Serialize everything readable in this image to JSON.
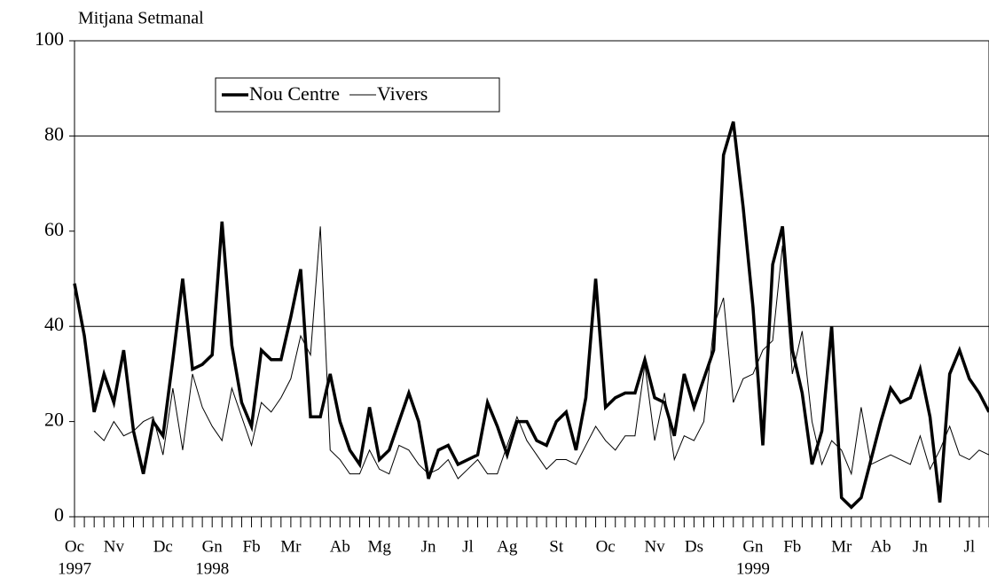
{
  "chart_data": {
    "type": "line",
    "y_label": "Mitjana Setmanal",
    "categories": [
      "Oc",
      null,
      null,
      null,
      "Nv",
      null,
      null,
      null,
      null,
      "Dc",
      null,
      null,
      null,
      null,
      "Gn",
      null,
      null,
      null,
      "Fb",
      null,
      null,
      null,
      "Mr",
      null,
      null,
      null,
      null,
      "Ab",
      null,
      null,
      null,
      "Mg",
      null,
      null,
      null,
      null,
      "Jn",
      null,
      null,
      null,
      "Jl",
      null,
      null,
      null,
      "Ag",
      null,
      null,
      null,
      null,
      "St",
      null,
      null,
      null,
      null,
      "Oc",
      null,
      null,
      null,
      null,
      "Nv",
      null,
      null,
      null,
      "Ds",
      null,
      null,
      null,
      null,
      null,
      "Gn",
      null,
      null,
      null,
      "Fb",
      null,
      null,
      null,
      null,
      "Mr",
      null,
      null,
      null,
      "Ab",
      null,
      null,
      null,
      "Jn",
      null,
      null,
      null,
      null,
      "Jl",
      null,
      null
    ],
    "years": [
      "1997",
      null,
      null,
      null,
      null,
      null,
      null,
      null,
      null,
      null,
      null,
      null,
      null,
      null,
      "1998",
      null,
      null,
      null,
      null,
      null,
      null,
      null,
      null,
      null,
      null,
      null,
      null,
      null,
      null,
      null,
      null,
      null,
      null,
      null,
      null,
      null,
      null,
      null,
      null,
      null,
      null,
      null,
      null,
      null,
      null,
      null,
      null,
      null,
      null,
      null,
      null,
      null,
      null,
      null,
      null,
      null,
      null,
      null,
      null,
      null,
      null,
      null,
      null,
      null,
      null,
      null,
      null,
      null,
      null,
      "1999",
      null,
      null,
      null,
      null,
      null,
      null,
      null,
      null,
      null,
      null,
      null,
      null,
      null,
      null,
      null,
      null,
      null,
      null,
      null,
      null,
      null,
      null,
      null,
      null
    ],
    "series": [
      {
        "name": "Nou Centre",
        "color": "#000000",
        "width": 3.5,
        "values": [
          49,
          38,
          22,
          30,
          24,
          35,
          18,
          9,
          20,
          17,
          33,
          50,
          31,
          32,
          34,
          62,
          36,
          24,
          19,
          35,
          33,
          33,
          42,
          52,
          21,
          21,
          30,
          20,
          14,
          11,
          23,
          12,
          14,
          20,
          26,
          20,
          8,
          14,
          15,
          11,
          12,
          13,
          24,
          19,
          13,
          20,
          20,
          16,
          15,
          20,
          22,
          14,
          25,
          50,
          23,
          25,
          26,
          26,
          33,
          25,
          24,
          17,
          30,
          23,
          29,
          35,
          76,
          83,
          65,
          44,
          15,
          53,
          61,
          35,
          26,
          11,
          18,
          40,
          4,
          2,
          4,
          12,
          20,
          27,
          24,
          25,
          31,
          21,
          3,
          30,
          35,
          29,
          26,
          22
        ]
      },
      {
        "name": "Vivers",
        "color": "#000000",
        "width": 1,
        "values": [
          null,
          null,
          18,
          16,
          20,
          17,
          18,
          20,
          21,
          13,
          27,
          14,
          30,
          23,
          19,
          16,
          27,
          21,
          15,
          24,
          22,
          25,
          29,
          38,
          34,
          61,
          14,
          12,
          9,
          9,
          14,
          10,
          9,
          15,
          14,
          11,
          9,
          10,
          12,
          8,
          10,
          12,
          9,
          9,
          15,
          21,
          16,
          13,
          10,
          12,
          12,
          11,
          15,
          19,
          16,
          14,
          17,
          17,
          32,
          16,
          26,
          12,
          17,
          16,
          20,
          40,
          46,
          24,
          29,
          30,
          35,
          37,
          57,
          30,
          39,
          20,
          11,
          16,
          14,
          9,
          23,
          11,
          12,
          13,
          12,
          11,
          17,
          10,
          14,
          19,
          13,
          12,
          14,
          13
        ]
      }
    ],
    "ylim": [
      0,
      100
    ],
    "yticks": [
      0,
      20,
      40,
      60,
      80,
      100
    ],
    "grid_lines": [
      40,
      80
    ]
  }
}
